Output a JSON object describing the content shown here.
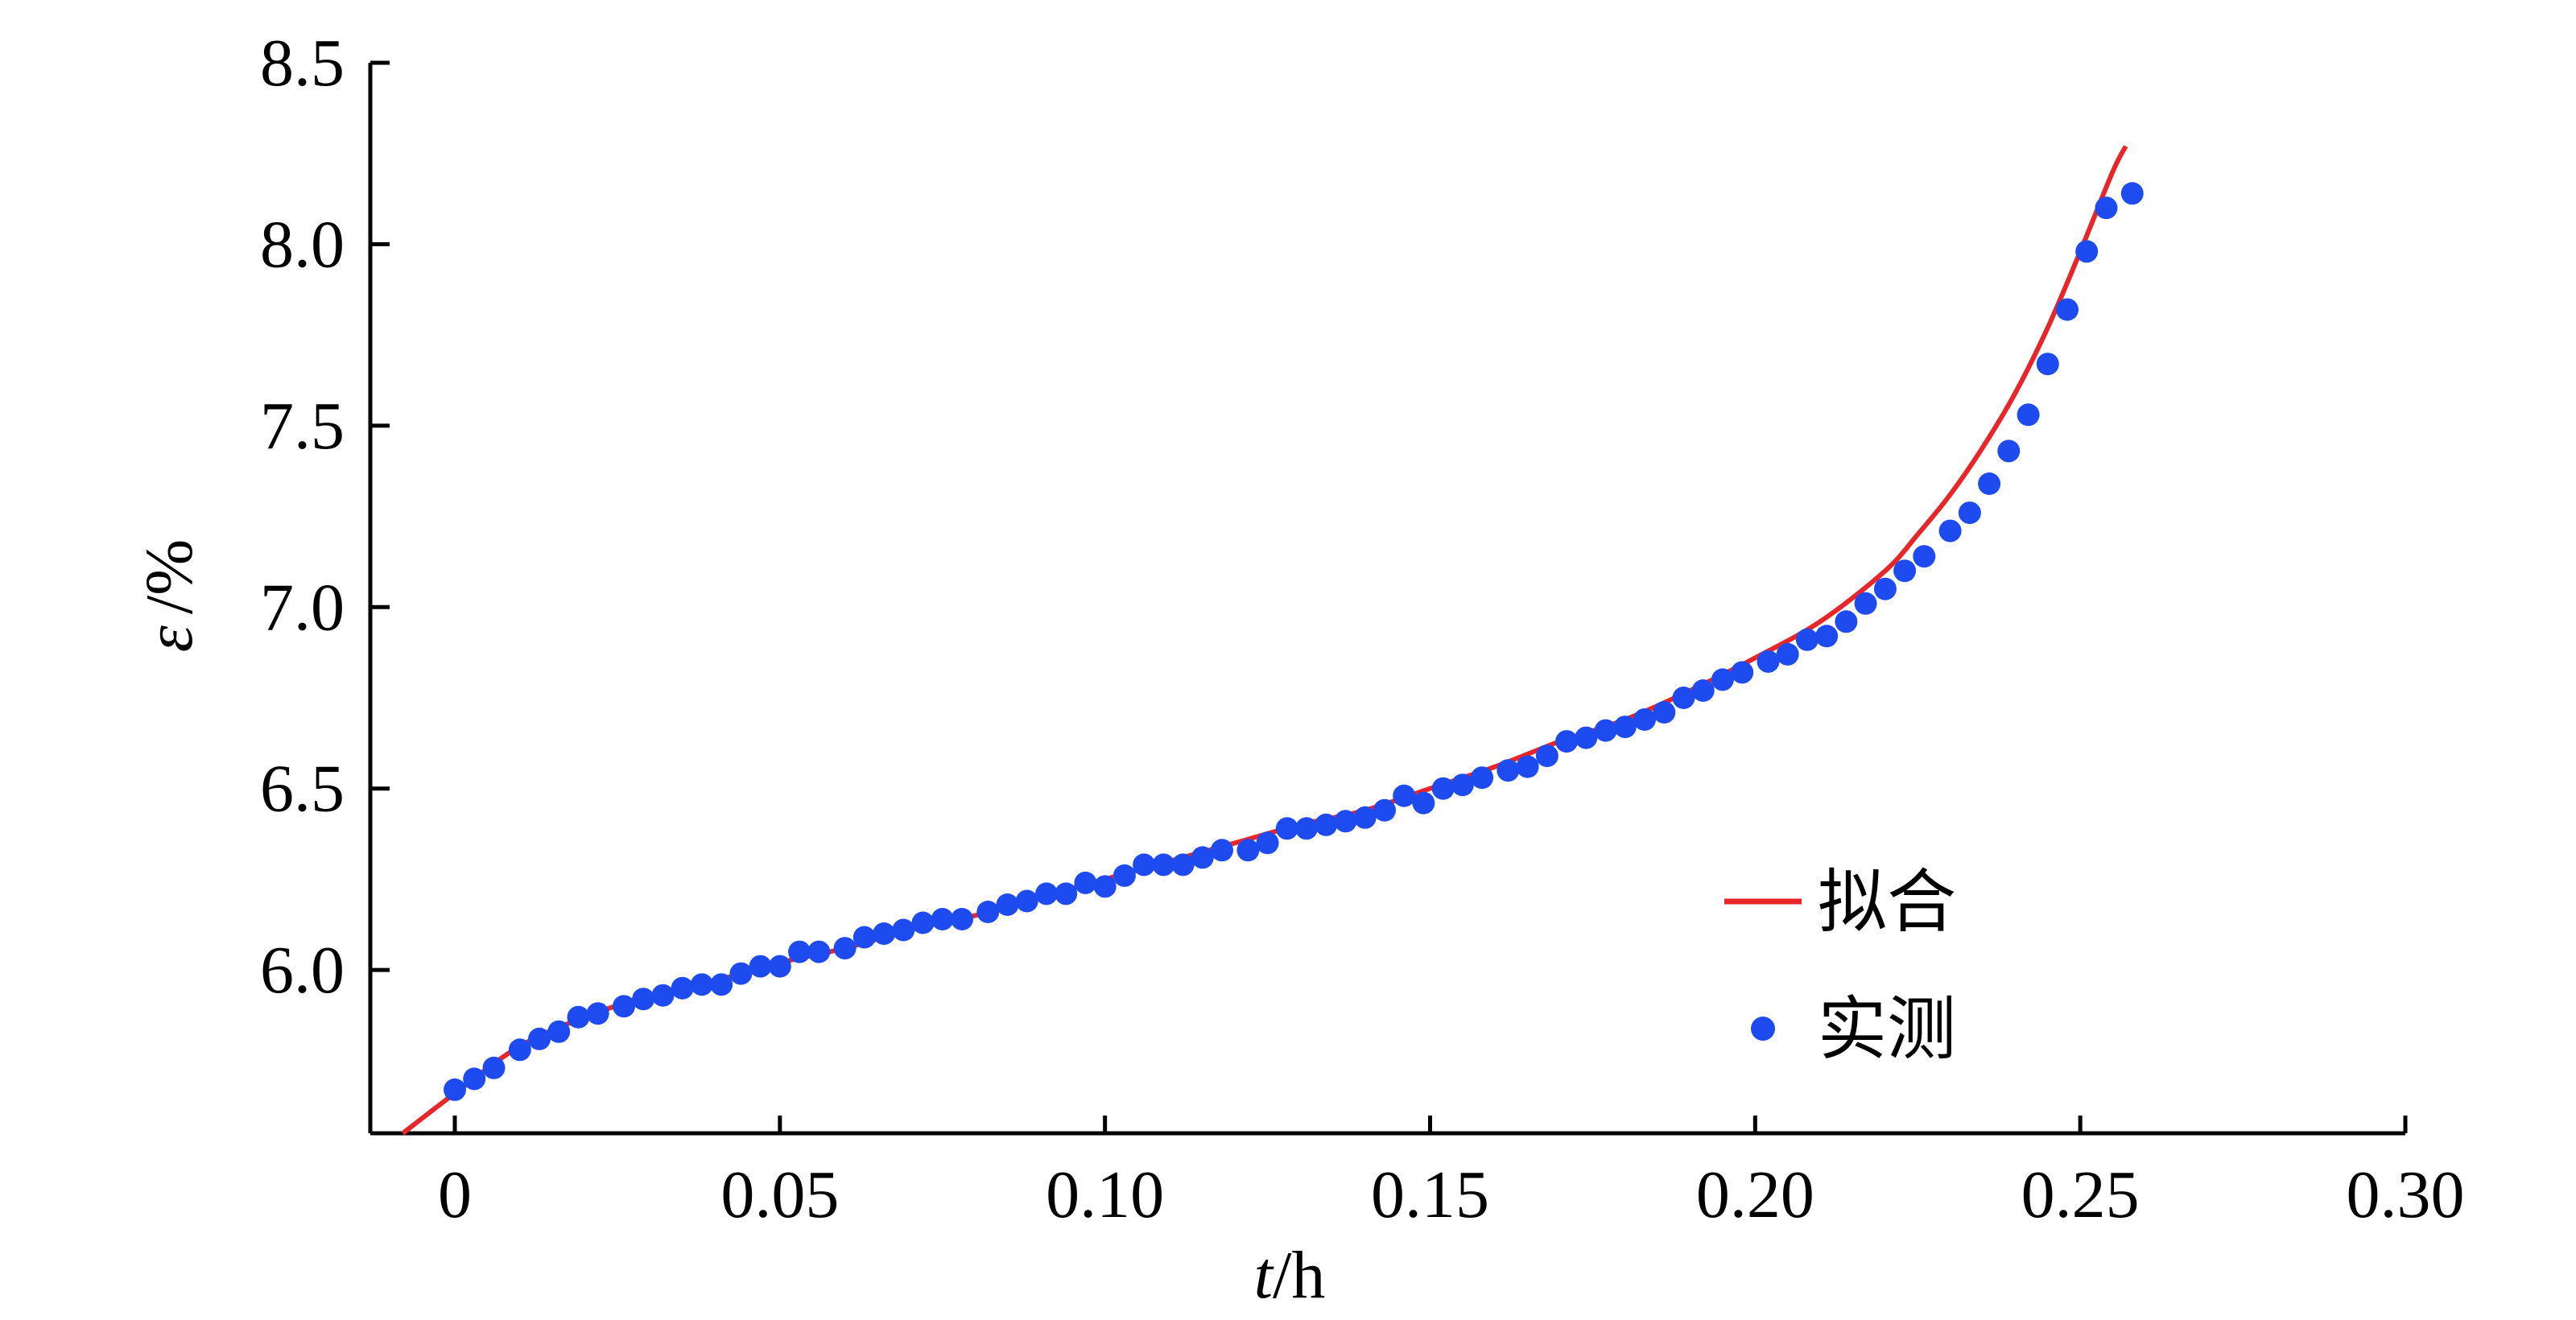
{
  "chart_data": {
    "type": "scatter",
    "title": "",
    "xlabel": {
      "var": "t",
      "unit": "/h"
    },
    "ylabel": {
      "var": "ε",
      "unit": "/%"
    },
    "xlim": [
      -0.013,
      0.3
    ],
    "ylim": [
      5.55,
      8.5
    ],
    "x_ticks": [
      0,
      0.05,
      0.1,
      0.15,
      0.2,
      0.25,
      0.3
    ],
    "x_tick_labels": [
      "0",
      "0.05",
      "0.10",
      "0.15",
      "0.20",
      "0.25",
      "0.30"
    ],
    "y_ticks": [
      6.0,
      6.5,
      7.0,
      7.5,
      8.0,
      8.5
    ],
    "y_tick_labels": [
      "6.0",
      "6.5",
      "7.0",
      "7.5",
      "8.0",
      "8.5"
    ],
    "grid": false,
    "legend_position": "bottom-right",
    "legend": [
      {
        "label": "拟合",
        "marker": "line",
        "color": "#e8262a"
      },
      {
        "label": "实测",
        "marker": "dot",
        "color": "#1e4bf0"
      }
    ],
    "series": [
      {
        "name": "拟合",
        "kind": "line",
        "color": "#e8262a",
        "x": [
          -0.008,
          0.0,
          0.01,
          0.02,
          0.03,
          0.04,
          0.05,
          0.06,
          0.07,
          0.08,
          0.09,
          0.1,
          0.11,
          0.12,
          0.13,
          0.14,
          0.15,
          0.16,
          0.17,
          0.18,
          0.19,
          0.2,
          0.21,
          0.22,
          0.225,
          0.23,
          0.235,
          0.24,
          0.245,
          0.25,
          0.255,
          0.257
        ],
        "y": [
          5.55,
          5.66,
          5.79,
          5.87,
          5.93,
          5.97,
          6.02,
          6.06,
          6.11,
          6.15,
          6.2,
          6.25,
          6.3,
          6.35,
          6.4,
          6.44,
          6.5,
          6.56,
          6.63,
          6.69,
          6.77,
          6.86,
          6.96,
          7.1,
          7.2,
          7.31,
          7.44,
          7.59,
          7.77,
          7.98,
          8.2,
          8.27
        ]
      },
      {
        "name": "实测",
        "kind": "scatter",
        "color": "#1e4bf0",
        "x": [
          0.0,
          0.003,
          0.006,
          0.01,
          0.013,
          0.016,
          0.019,
          0.022,
          0.026,
          0.029,
          0.032,
          0.035,
          0.038,
          0.041,
          0.044,
          0.047,
          0.05,
          0.053,
          0.056,
          0.06,
          0.063,
          0.066,
          0.069,
          0.072,
          0.075,
          0.078,
          0.082,
          0.085,
          0.088,
          0.091,
          0.094,
          0.097,
          0.1,
          0.103,
          0.106,
          0.109,
          0.112,
          0.115,
          0.118,
          0.122,
          0.125,
          0.128,
          0.131,
          0.134,
          0.137,
          0.14,
          0.143,
          0.146,
          0.149,
          0.152,
          0.155,
          0.158,
          0.162,
          0.165,
          0.168,
          0.171,
          0.174,
          0.177,
          0.18,
          0.183,
          0.186,
          0.189,
          0.192,
          0.195,
          0.198,
          0.202,
          0.205,
          0.208,
          0.211,
          0.214,
          0.217,
          0.22,
          0.223,
          0.226,
          0.23,
          0.233,
          0.236,
          0.239,
          0.242,
          0.245,
          0.248,
          0.251,
          0.254,
          0.258
        ],
        "y": [
          5.67,
          5.7,
          5.73,
          5.78,
          5.81,
          5.83,
          5.87,
          5.88,
          5.9,
          5.92,
          5.93,
          5.95,
          5.96,
          5.96,
          5.99,
          6.01,
          6.01,
          6.05,
          6.05,
          6.06,
          6.09,
          6.1,
          6.11,
          6.13,
          6.14,
          6.14,
          6.16,
          6.18,
          6.19,
          6.21,
          6.21,
          6.24,
          6.23,
          6.26,
          6.29,
          6.29,
          6.29,
          6.31,
          6.33,
          6.33,
          6.35,
          6.39,
          6.39,
          6.4,
          6.41,
          6.42,
          6.44,
          6.48,
          6.46,
          6.5,
          6.51,
          6.53,
          6.55,
          6.56,
          6.59,
          6.63,
          6.64,
          6.66,
          6.67,
          6.69,
          6.71,
          6.75,
          6.77,
          6.8,
          6.82,
          6.85,
          6.87,
          6.91,
          6.92,
          6.96,
          7.01,
          7.05,
          7.1,
          7.14,
          7.21,
          7.26,
          7.34,
          7.43,
          7.53,
          7.67,
          7.82,
          7.98,
          8.1,
          8.14
        ]
      }
    ]
  }
}
